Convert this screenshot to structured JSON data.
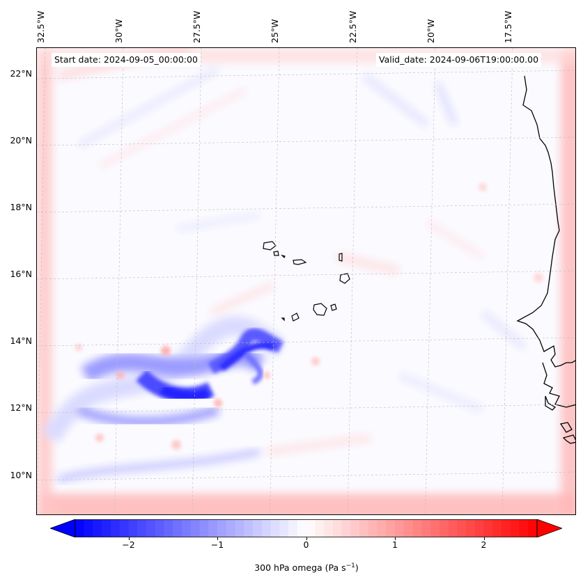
{
  "header": {
    "start_date": "Start date: 2024-09-05_00:00:00",
    "valid_date": "Valid_date: 2024-09-06T19:00:00.00"
  },
  "axes": {
    "longitude_labels": [
      "32.5°W",
      "30°W",
      "27.5°W",
      "25°W",
      "22.5°W",
      "20°W",
      "17.5°W"
    ],
    "latitude_labels": [
      "22°N",
      "20°N",
      "18°N",
      "16°N",
      "14°N",
      "12°N",
      "10°N"
    ],
    "longitudes": [
      -32.5,
      -30,
      -27.5,
      -25,
      -22.5,
      -20,
      -17.5
    ],
    "latitudes": [
      22,
      20,
      18,
      16,
      14,
      12,
      10
    ],
    "gridlines": true
  },
  "colorbar": {
    "ticks": [
      "−2",
      "−1",
      "0",
      "1",
      "2"
    ],
    "tick_values": [
      -2,
      -1,
      0,
      1,
      2
    ],
    "range": [
      -2.6,
      2.6
    ],
    "colormap": "bwr",
    "extend": "both",
    "min_color": "#0000ff",
    "mid_color": "#ffffff",
    "max_color": "#ff0000",
    "label": "300 hPa omega (Pa s",
    "label_sup": "−1",
    "label_end": ")"
  },
  "map": {
    "variable": "300 hPa omega",
    "features": [
      "Cabo Verde islands",
      "West African coastline"
    ]
  }
}
